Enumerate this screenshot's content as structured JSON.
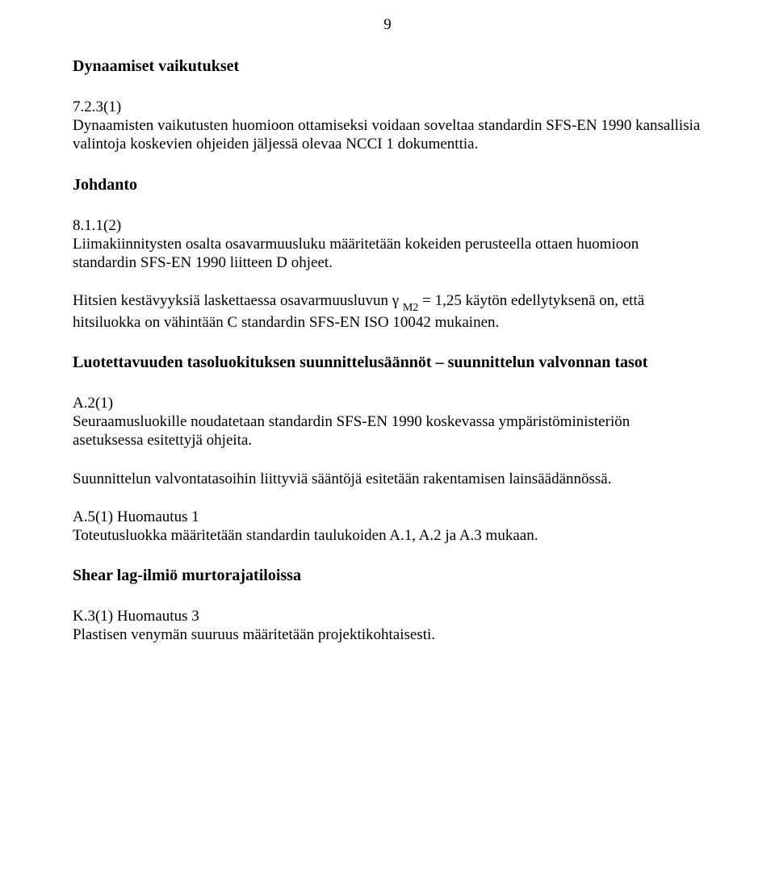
{
  "page_number": "9",
  "sections": [
    {
      "heading": "Dynaamiset vaikutukset",
      "clauses": [
        {
          "id": "7.2.3(1)",
          "text": "Dynaamisten vaikutusten huomioon ottamiseksi voidaan soveltaa standardin SFS-EN 1990 kansallisia valintoja koskevien ohjeiden jäljessä olevaa NCCI 1 dokumenttia."
        }
      ]
    },
    {
      "heading": "Johdanto",
      "clauses": [
        {
          "id": "8.1.1(2)",
          "text": "Liimakiinnitysten osalta osavarmuusluku määritetään kokeiden perusteella ottaen huomioon standardin SFS-EN 1990 liitteen D ohjeet."
        }
      ],
      "extra_1_prefix": "Hitsien kestävyyksiä laskettaessa osavarmuusluvun γ ",
      "extra_1_sub": "M2",
      "extra_1_suffix": " = 1,25 käytön edellytyksenä on, että hitsiluokka on vähintään C standardin SFS-EN ISO 10042 mukainen."
    },
    {
      "heading": "Luotettavuuden tasoluokituksen suunnittelusäännöt – suunnittelun valvonnan tasot",
      "clauses": [
        {
          "id": "A.2(1)",
          "text": "Seuraamusluokille noudatetaan standardin SFS-EN 1990 koskevassa ympäristöministeriön asetuksessa esitettyjä ohjeita."
        }
      ],
      "extra_2": "Suunnittelun valvontatasoihin liittyviä sääntöjä esitetään rakentamisen lainsäädännössä.",
      "clauses2": [
        {
          "id": "A.5(1) Huomautus 1",
          "text": "Toteutusluokka määritetään standardin taulukoiden A.1, A.2 ja A.3 mukaan."
        }
      ]
    },
    {
      "heading": "Shear lag-ilmiö murtorajatiloissa",
      "clauses": [
        {
          "id": "K.3(1) Huomautus 3",
          "text": "Plastisen venymän suuruus määritetään projektikohtaisesti."
        }
      ]
    }
  ]
}
